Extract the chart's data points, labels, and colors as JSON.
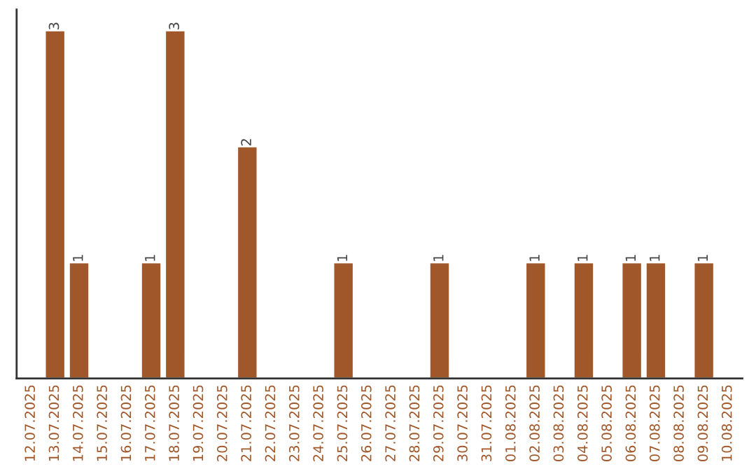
{
  "chart_data": {
    "type": "bar",
    "categories": [
      "12.07.2025",
      "13.07.2025",
      "14.07.2025",
      "15.07.2025",
      "16.07.2025",
      "17.07.2025",
      "18.07.2025",
      "19.07.2025",
      "20.07.2025",
      "21.07.2025",
      "22.07.2025",
      "23.07.2025",
      "24.07.2025",
      "25.07.2025",
      "26.07.2025",
      "27.07.2025",
      "28.07.2025",
      "29.07.2025",
      "30.07.2025",
      "31.07.2025",
      "01.08.2025",
      "02.08.2025",
      "03.08.2025",
      "04.08.2025",
      "05.08.2025",
      "06.08.2025",
      "07.08.2025",
      "08.08.2025",
      "09.08.2025",
      "10.08.2025"
    ],
    "values": [
      null,
      3,
      1,
      null,
      null,
      1,
      3,
      null,
      null,
      2,
      null,
      null,
      null,
      1,
      null,
      null,
      null,
      1,
      null,
      null,
      null,
      1,
      null,
      1,
      null,
      1,
      1,
      null,
      1,
      null
    ],
    "color": "#a0582a",
    "data_labels": true,
    "tick_labels": "x",
    "grid": false
  }
}
